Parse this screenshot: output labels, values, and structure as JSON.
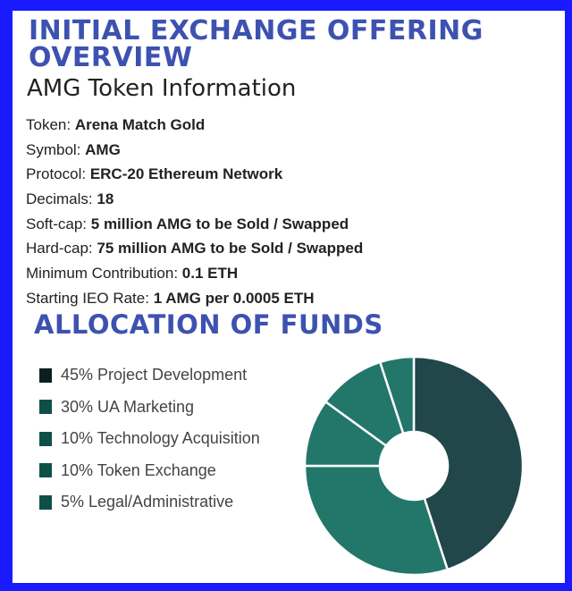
{
  "header": {
    "title_line1": "INITIAL EXCHANGE OFFERING",
    "title_line2": "OVERVIEW",
    "subtitle": "AMG Token Information"
  },
  "info": [
    {
      "label": "Token: ",
      "value": "Arena Match Gold"
    },
    {
      "label": "Symbol: ",
      "value": "AMG"
    },
    {
      "label": "Protocol: ",
      "value": "ERC-20 Ethereum Network"
    },
    {
      "label": "Decimals: ",
      "value": "18"
    },
    {
      "label": "Soft-cap: ",
      "value": "5 million AMG to be Sold / Swapped"
    },
    {
      "label": "Hard-cap: ",
      "value": "75 million AMG to be Sold / Swapped"
    },
    {
      "label": "Minimum Contribution: ",
      "value": "0.1 ETH"
    },
    {
      "label": "Starting IEO Rate: ",
      "value": "1 AMG per 0.0005 ETH"
    }
  ],
  "chart_data": {
    "type": "pie",
    "title": "ALLOCATION OF FUNDS",
    "donut": true,
    "legend_position": "left",
    "categories": [
      "Project Development",
      "UA Marketing",
      "Technology Acquisition",
      "Token Exchange",
      "Legal/Administrative"
    ],
    "legend_labels": [
      "45% Project Development",
      "30% UA Marketing",
      "10% Technology Acquisition",
      "10% Token Exchange",
      "5% Legal/Administrative"
    ],
    "values": [
      45,
      30,
      10,
      10,
      5
    ],
    "slice_colors": [
      "#21474a",
      "#22766a",
      "#22766a",
      "#22766a",
      "#22766a"
    ],
    "legend_colors": [
      "#0b1f1f",
      "#0e5048",
      "#0e5048",
      "#0e5048",
      "#0e5048"
    ]
  },
  "colors": {
    "border": "#1a1aff",
    "title": "#3d52b0"
  }
}
